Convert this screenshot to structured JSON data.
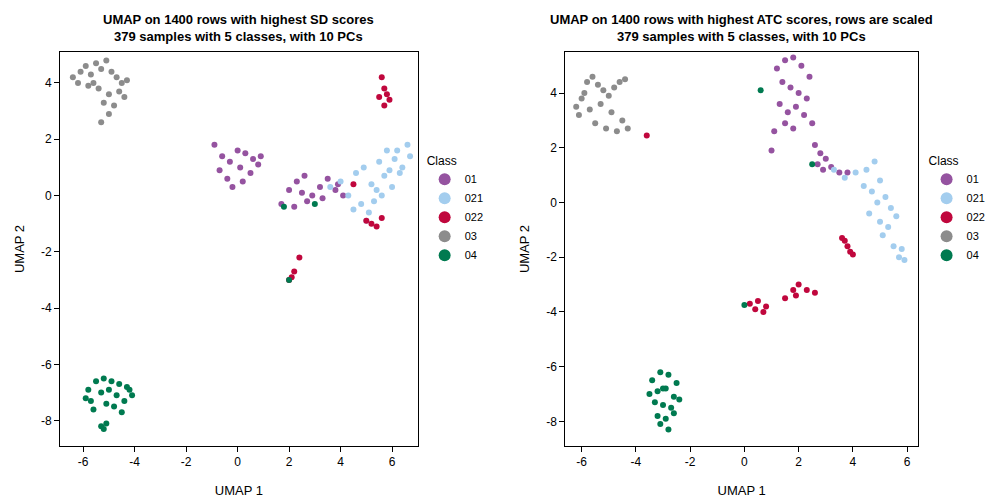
{
  "chart_data": [
    {
      "type": "scatter",
      "title": "UMAP on 1400 rows with highest SD scores",
      "subtitle": "379 samples with 5 classes, with 10 PCs",
      "x_label": "UMAP 1",
      "y_label": "UMAP 2",
      "legend_title": "Class",
      "legend": "right",
      "grid": false,
      "marker": "circle",
      "xlim": [
        -6.9,
        7.0
      ],
      "xticks": [
        -6,
        -4,
        -2,
        0,
        2,
        4,
        6
      ],
      "ylim": [
        -8.9,
        5.1
      ],
      "yticks": [
        -8,
        -6,
        -4,
        -2,
        0,
        2,
        4
      ],
      "series": [
        {
          "name": "01",
          "color": "#9553A0",
          "x": [
            -0.9,
            -0.6,
            -0.3,
            0.0,
            0.3,
            0.6,
            0.9,
            -0.7,
            -0.4,
            0.1,
            0.5,
            0.8,
            -0.2,
            0.2,
            1.7,
            2.0,
            2.3,
            2.6,
            2.9,
            3.2,
            3.5,
            3.8,
            4.1,
            2.2,
            2.7,
            3.3,
            3.9,
            2.5
          ],
          "values": [
            1.8,
            1.4,
            1.2,
            1.6,
            1.5,
            1.3,
            1.4,
            0.9,
            0.6,
            1.0,
            0.8,
            1.1,
            0.3,
            0.5,
            -0.3,
            0.2,
            0.5,
            0.7,
            0.0,
            0.3,
            0.6,
            0.2,
            0.0,
            -0.4,
            -0.2,
            -0.1,
            0.4,
            0.1
          ]
        },
        {
          "name": "021",
          "color": "#A3CDEE",
          "x": [
            3.6,
            4.0,
            4.3,
            4.6,
            4.9,
            5.2,
            5.5,
            5.8,
            6.1,
            6.4,
            6.7,
            4.8,
            5.1,
            5.4,
            5.7,
            6.0,
            6.3,
            6.6,
            5.0,
            5.3,
            5.6,
            6.2,
            4.5,
            5.9
          ],
          "values": [
            0.3,
            0.5,
            0.0,
            0.8,
            1.0,
            0.4,
            1.2,
            1.6,
            1.3,
            1.0,
            1.4,
            -0.3,
            -0.6,
            0.2,
            0.7,
            0.3,
            0.8,
            1.8,
            -0.9,
            -0.2,
            0.0,
            1.6,
            -0.5,
            0.9
          ]
        },
        {
          "name": "022",
          "color": "#C0073D",
          "x": [
            5.6,
            5.7,
            5.8,
            5.9,
            5.7,
            5.5,
            5.0,
            5.2,
            5.4,
            5.6,
            2.1,
            2.2,
            2.0,
            2.4,
            4.5
          ],
          "values": [
            4.2,
            3.8,
            3.6,
            3.4,
            3.2,
            3.5,
            -0.9,
            -1.0,
            -1.1,
            -0.8,
            -2.9,
            -2.7,
            -3.0,
            -2.2,
            0.4
          ]
        },
        {
          "name": "03",
          "color": "#8C8C8C",
          "x": [
            -6.4,
            -6.1,
            -5.9,
            -5.7,
            -5.5,
            -5.3,
            -5.1,
            -4.9,
            -4.7,
            -4.5,
            -4.3,
            -5.8,
            -5.4,
            -5.0,
            -4.6,
            -5.2,
            -4.8,
            -5.6,
            -5.0,
            -4.4,
            -6.2,
            -5.3
          ],
          "values": [
            4.2,
            4.4,
            4.6,
            4.3,
            4.7,
            4.5,
            4.8,
            4.4,
            4.2,
            4.0,
            4.1,
            3.9,
            3.8,
            3.6,
            3.7,
            3.3,
            3.2,
            4.0,
            2.9,
            3.5,
            4.0,
            2.6
          ]
        },
        {
          "name": "04",
          "color": "#007A50",
          "x": [
            -5.8,
            -5.5,
            -5.2,
            -4.9,
            -4.6,
            -4.3,
            -4.1,
            -5.7,
            -5.3,
            -5.0,
            -4.7,
            -4.4,
            -5.6,
            -5.1,
            -4.8,
            -4.5,
            -5.9,
            -4.2,
            -5.3,
            -5.2,
            -5.1,
            2.0,
            1.8,
            3.0
          ],
          "values": [
            -6.9,
            -6.6,
            -6.5,
            -6.6,
            -6.7,
            -6.8,
            -7.1,
            -7.3,
            -7.0,
            -6.9,
            -7.1,
            -7.3,
            -7.6,
            -7.4,
            -7.5,
            -7.7,
            -7.2,
            -6.9,
            -8.2,
            -8.3,
            -8.1,
            -3.0,
            -0.4,
            -0.3
          ]
        }
      ]
    },
    {
      "type": "scatter",
      "title": "UMAP on 1400 rows with highest ATC scores, rows are scaled",
      "subtitle": "379 samples with 5 classes, with 10 PCs",
      "x_label": "UMAP 1",
      "y_label": "UMAP 2",
      "legend_title": "Class",
      "legend": "right",
      "grid": false,
      "marker": "circle",
      "xlim": [
        -6.6,
        6.4
      ],
      "xticks": [
        -6,
        -4,
        -2,
        0,
        2,
        4,
        6
      ],
      "ylim": [
        -8.9,
        5.5
      ],
      "yticks": [
        -8,
        -6,
        -4,
        -2,
        0,
        2,
        4
      ],
      "series": [
        {
          "name": "01",
          "color": "#9553A0",
          "x": [
            1.2,
            1.5,
            1.8,
            2.1,
            2.4,
            1.4,
            1.7,
            2.0,
            2.3,
            1.3,
            1.6,
            1.9,
            2.2,
            1.1,
            1.5,
            1.8,
            2.6,
            2.8,
            3.0,
            2.7,
            2.9,
            3.2,
            3.5,
            3.8,
            1.0,
            2.5
          ],
          "values": [
            4.9,
            5.2,
            5.3,
            5.0,
            4.6,
            4.4,
            4.2,
            4.0,
            3.8,
            3.6,
            3.3,
            3.5,
            3.2,
            2.6,
            2.9,
            2.7,
            2.1,
            1.8,
            1.6,
            1.4,
            1.2,
            1.3,
            1.1,
            1.1,
            1.9,
            2.9
          ]
        },
        {
          "name": "021",
          "color": "#A3CDEE",
          "x": [
            3.3,
            3.7,
            4.1,
            4.5,
            4.8,
            5.0,
            4.7,
            4.9,
            5.2,
            5.4,
            4.6,
            5.0,
            5.3,
            5.6,
            5.8,
            5.1,
            5.5,
            5.9,
            4.4,
            5.7
          ],
          "values": [
            1.2,
            0.9,
            1.1,
            1.2,
            1.5,
            0.8,
            0.4,
            0.0,
            0.2,
            -0.2,
            -0.4,
            -0.7,
            -0.9,
            -0.5,
            -1.7,
            -1.2,
            -1.6,
            -2.1,
            0.6,
            -2.0
          ]
        },
        {
          "name": "022",
          "color": "#C0073D",
          "x": [
            3.7,
            3.8,
            3.9,
            4.0,
            3.6,
            1.5,
            1.8,
            2.0,
            2.3,
            2.6,
            1.9,
            0.2,
            0.5,
            0.8,
            0.4,
            0.7,
            -3.6
          ],
          "values": [
            -1.4,
            -1.6,
            -1.8,
            -1.9,
            -1.3,
            -3.5,
            -3.2,
            -3.0,
            -3.2,
            -3.3,
            -3.4,
            -3.7,
            -3.6,
            -3.8,
            -3.9,
            -4.0,
            2.45
          ]
        },
        {
          "name": "03",
          "color": "#8C8C8C",
          "x": [
            -6.2,
            -6.0,
            -5.8,
            -5.6,
            -5.4,
            -5.2,
            -5.0,
            -4.8,
            -4.6,
            -4.4,
            -6.1,
            -5.7,
            -5.3,
            -4.9,
            -4.5,
            -5.5,
            -5.1,
            -4.7,
            -4.3,
            -5.9
          ],
          "values": [
            3.5,
            3.8,
            4.4,
            4.6,
            4.3,
            4.1,
            3.9,
            4.2,
            4.4,
            4.5,
            3.2,
            3.4,
            3.6,
            3.3,
            3.0,
            2.9,
            2.7,
            2.6,
            2.7,
            4.0
          ]
        },
        {
          "name": "04",
          "color": "#007A50",
          "x": [
            -3.4,
            -3.1,
            -2.8,
            -2.5,
            -3.5,
            -3.2,
            -2.9,
            -2.6,
            -3.3,
            -3.0,
            -2.7,
            -2.4,
            -3.2,
            -2.9,
            -3.1,
            -2.8,
            -3.0,
            -2.6,
            0.0,
            0.6,
            2.5
          ],
          "values": [
            -6.5,
            -6.2,
            -6.3,
            -6.6,
            -7.0,
            -6.9,
            -6.8,
            -7.1,
            -7.3,
            -7.4,
            -7.5,
            -7.2,
            -7.8,
            -7.9,
            -8.1,
            -8.3,
            -6.8,
            -7.7,
            -3.75,
            4.1,
            1.4
          ]
        }
      ]
    }
  ]
}
